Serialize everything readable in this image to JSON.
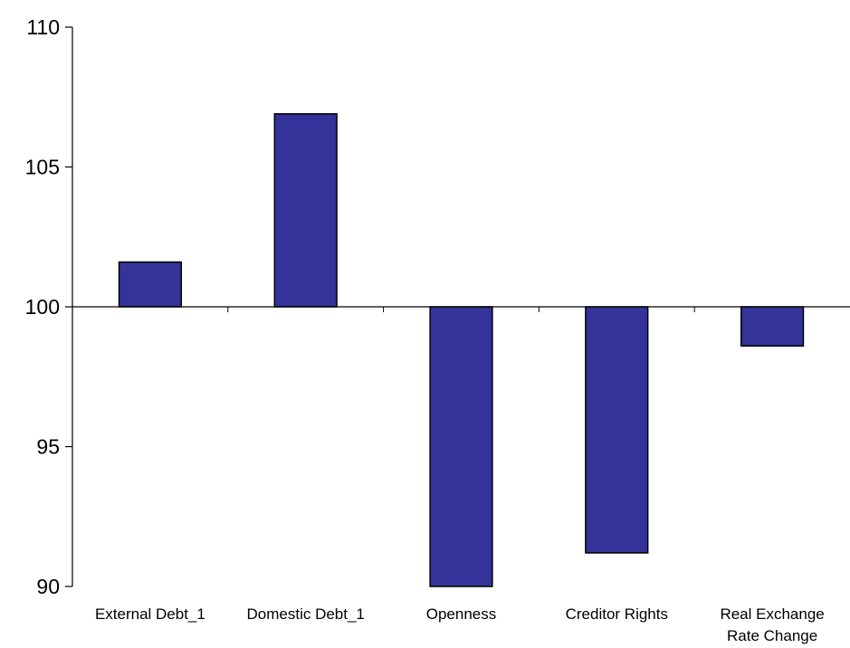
{
  "chart_data": {
    "type": "bar",
    "title": "",
    "xlabel": "",
    "ylabel": "",
    "categories": [
      [
        "External Debt_1"
      ],
      [
        "Domestic Debt_1"
      ],
      [
        "Openness"
      ],
      [
        "Creditor Rights"
      ],
      [
        "Real Exchange",
        "Rate Change"
      ]
    ],
    "values": [
      101.6,
      106.9,
      89.8,
      91.2,
      98.6
    ],
    "baseline": 100,
    "ylim": [
      90,
      110
    ],
    "yticks": [
      90,
      95,
      100,
      105,
      110
    ],
    "grid": false,
    "legend": "none",
    "bar_color": "#333399",
    "bar_edge_color": "#000000"
  }
}
